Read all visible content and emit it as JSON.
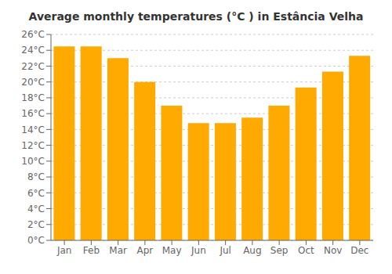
{
  "chart_data": {
    "type": "bar",
    "title": "Average monthly temperatures (°C ) in Estância Velha",
    "categories": [
      "Jan",
      "Feb",
      "Mar",
      "Apr",
      "May",
      "Jun",
      "Jul",
      "Aug",
      "Sep",
      "Oct",
      "Nov",
      "Dec"
    ],
    "values": [
      24.5,
      24.5,
      23.0,
      20.0,
      17.0,
      14.8,
      14.8,
      15.5,
      17.0,
      19.3,
      21.3,
      23.3
    ],
    "color": "#FFAA00",
    "ylim": [
      0,
      26
    ],
    "yticks": [
      {
        "value": 0,
        "label": "0°C"
      },
      {
        "value": 2,
        "label": "2°C"
      },
      {
        "value": 4,
        "label": "4°C"
      },
      {
        "value": 6,
        "label": "6°C"
      },
      {
        "value": 8,
        "label": "8°C"
      },
      {
        "value": 10,
        "label": "10°C"
      },
      {
        "value": 12,
        "label": "12°C"
      },
      {
        "value": 14,
        "label": "14°C"
      },
      {
        "value": 16,
        "label": "16°C"
      },
      {
        "value": 18,
        "label": "18°C"
      },
      {
        "value": 20,
        "label": "20°C"
      },
      {
        "value": 22,
        "label": "22°C"
      },
      {
        "value": 24,
        "label": "24°C"
      },
      {
        "value": 26,
        "label": "26°C"
      }
    ],
    "grid": true
  }
}
